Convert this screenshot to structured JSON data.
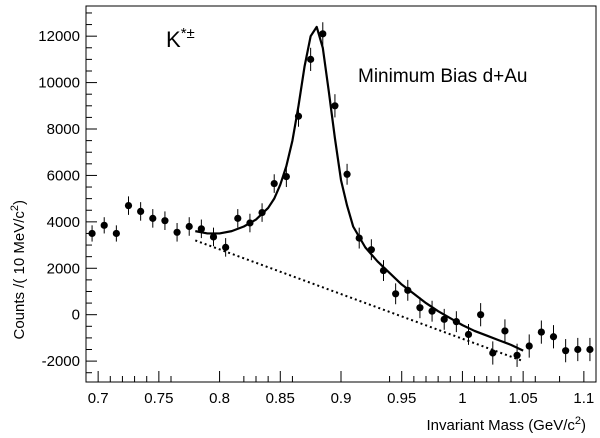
{
  "chart_data": {
    "type": "scatter",
    "xlabel": "Invariant Mass (GeV/c",
    "xlabel_sup": "2",
    "xlabel_end": ")",
    "ylabel": "Counts /( 10 MeV/c",
    "ylabel_sup": "2",
    "ylabel_end": ")",
    "xlim": [
      0.69,
      1.11
    ],
    "ylim": [
      -2900,
      13300
    ],
    "xticks": [
      0.7,
      0.75,
      0.8,
      0.85,
      0.9,
      0.95,
      1.0,
      1.05,
      1.1
    ],
    "xtick_labels": [
      "0.7",
      "0.75",
      "0.8",
      "0.85",
      "0.9",
      "0.95",
      "1",
      "1.05",
      "1.1"
    ],
    "yticks": [
      -2000,
      0,
      2000,
      4000,
      6000,
      8000,
      10000,
      12000
    ],
    "ytick_labels": [
      "-2000",
      "0",
      "2000",
      "4000",
      "6000",
      "8000",
      "10000",
      "12000"
    ],
    "grid": false,
    "annotations": {
      "particle_main": "K",
      "particle_sup": "*±",
      "dataset": "Minimum Bias d+Au"
    },
    "series": [
      {
        "kind": "points_with_errors",
        "x": [
          0.695,
          0.705,
          0.715,
          0.725,
          0.735,
          0.745,
          0.755,
          0.765,
          0.775,
          0.785,
          0.795,
          0.805,
          0.815,
          0.825,
          0.835,
          0.845,
          0.855,
          0.865,
          0.875,
          0.885,
          0.895,
          0.905,
          0.915,
          0.925,
          0.935,
          0.945,
          0.955,
          0.965,
          0.975,
          0.985,
          0.995,
          1.005,
          1.015,
          1.025,
          1.035,
          1.045,
          1.055,
          1.065,
          1.075,
          1.085,
          1.095,
          1.105
        ],
        "y": [
          3500,
          3850,
          3500,
          4700,
          4450,
          4150,
          4050,
          3550,
          3800,
          3700,
          3350,
          2900,
          4150,
          3950,
          4400,
          5650,
          5950,
          8550,
          11000,
          12100,
          9000,
          6050,
          3300,
          2800,
          1900,
          900,
          1050,
          300,
          150,
          -200,
          -300,
          -850,
          0,
          -1650,
          -700,
          -1750,
          -1350,
          -750,
          -950,
          -1550,
          -1500,
          -1500
        ],
        "yerr": [
          350,
          350,
          350,
          400,
          400,
          400,
          400,
          400,
          400,
          400,
          400,
          400,
          400,
          400,
          400,
          400,
          450,
          450,
          500,
          500,
          500,
          450,
          450,
          450,
          450,
          450,
          450,
          450,
          450,
          450,
          450,
          450,
          500,
          500,
          500,
          500,
          500,
          500,
          500,
          500,
          500,
          500
        ]
      },
      {
        "kind": "fit",
        "style": "solid",
        "x": [
          0.78,
          0.79,
          0.8,
          0.81,
          0.82,
          0.83,
          0.84,
          0.845,
          0.85,
          0.855,
          0.86,
          0.865,
          0.87,
          0.875,
          0.88,
          0.885,
          0.89,
          0.895,
          0.9,
          0.905,
          0.91,
          0.92,
          0.93,
          0.94,
          0.95,
          0.96,
          0.97,
          0.98,
          0.99,
          1.0,
          1.01,
          1.02,
          1.03,
          1.04,
          1.05
        ],
        "y": [
          3600,
          3500,
          3500,
          3600,
          3800,
          4100,
          4600,
          5000,
          5600,
          6400,
          7500,
          9000,
          10700,
          12000,
          12400,
          11500,
          9600,
          7600,
          5800,
          4700,
          3800,
          2900,
          2300,
          1800,
          1300,
          900,
          500,
          150,
          -150,
          -450,
          -700,
          -900,
          -1100,
          -1300,
          -1550
        ]
      },
      {
        "kind": "background",
        "style": "dotted",
        "x": [
          0.78,
          1.05
        ],
        "y": [
          3200,
          -2000
        ]
      }
    ]
  }
}
